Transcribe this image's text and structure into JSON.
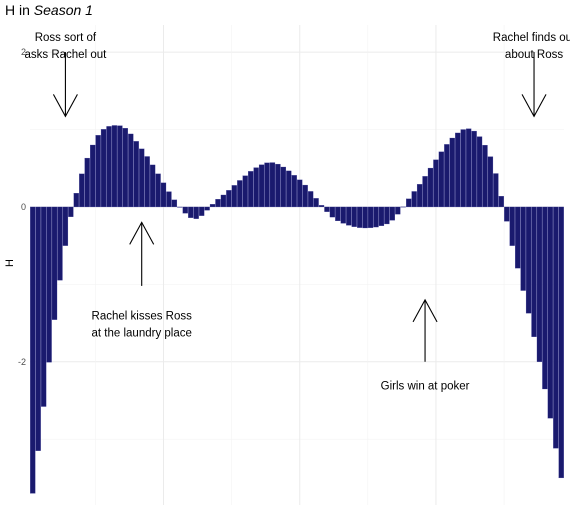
{
  "chart_data": {
    "type": "bar",
    "title_prefix": "H in ",
    "title_italic": "Season 1",
    "ylabel": "H",
    "xlabel": "",
    "ylim": [
      -3.85,
      2.35
    ],
    "xlim": [
      0.5,
      98.5
    ],
    "grid": true,
    "bar_color": "#1a1a6e",
    "y_ticks": [
      -2,
      0,
      2
    ],
    "y_tick_labels": [
      "-2",
      "0",
      "2"
    ],
    "polyfit": {
      "knots_x": [
        1,
        7,
        12,
        17,
        21,
        30,
        35,
        44,
        50,
        57,
        66,
        71,
        80,
        85,
        89,
        94,
        98
      ],
      "knots_y": [
        -3.7,
        -0.5,
        0.8,
        1.05,
        0.75,
        -0.14,
        0.1,
        0.57,
        0.35,
        -0.18,
        -0.22,
        0.2,
        1.0,
        0.65,
        -0.5,
        -2.0,
        -3.5
      ]
    },
    "annotations": [
      {
        "lines": [
          "Ross sort of",
          "asks Rachel out"
        ],
        "x": 7,
        "y": 2.3,
        "arrow_to": [
          7,
          1.17
        ],
        "arrow_from": [
          7,
          2.0
        ],
        "dir": "down"
      },
      {
        "lines": [
          "Rachel finds out",
          "about Ross"
        ],
        "x": 93,
        "y": 2.3,
        "arrow_to": [
          93,
          1.17
        ],
        "arrow_from": [
          93,
          2.0
        ],
        "dir": "down"
      },
      {
        "lines": [
          "Rachel kisses Ross",
          "at the laundry place"
        ],
        "x": 21,
        "y": -1.3,
        "arrow_to": [
          21,
          -0.2
        ],
        "arrow_from": [
          21,
          -1.02
        ],
        "dir": "up"
      },
      {
        "lines": [
          "Girls win at poker"
        ],
        "x": 73,
        "y": -2.2,
        "arrow_to": [
          73,
          -1.2
        ],
        "arrow_from": [
          73,
          -2.0
        ],
        "dir": "up"
      }
    ]
  }
}
